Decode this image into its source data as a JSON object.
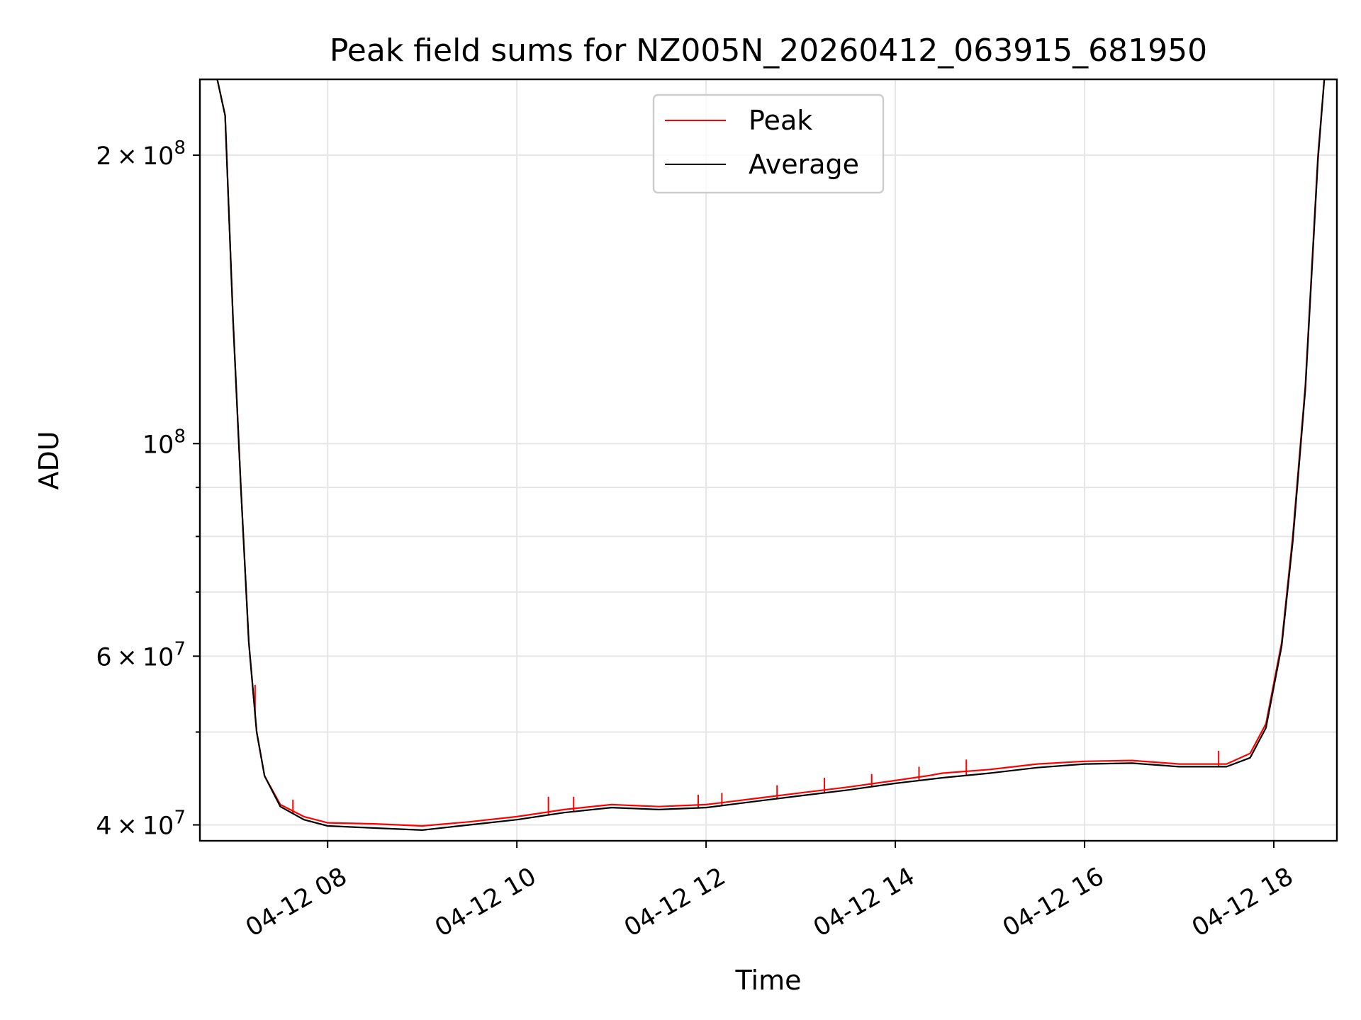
{
  "chart_data": {
    "type": "line",
    "title": "Peak field sums for NZ005N_20260412_063915_681950",
    "xlabel": "Time",
    "ylabel": "ADU",
    "y_scale": "log",
    "grid": true,
    "legend_position": "upper center",
    "xlim": [
      "2026-04-12 06:39",
      "2026-04-12 18:40"
    ],
    "ylim": [
      38500000,
      240000000
    ],
    "x_ticks": [
      {
        "time": "2026-04-12 08:00",
        "label": "04-12 08"
      },
      {
        "time": "2026-04-12 10:00",
        "label": "04-12 10"
      },
      {
        "time": "2026-04-12 12:00",
        "label": "04-12 12"
      },
      {
        "time": "2026-04-12 14:00",
        "label": "04-12 14"
      },
      {
        "time": "2026-04-12 16:00",
        "label": "04-12 16"
      },
      {
        "time": "2026-04-12 18:00",
        "label": "04-12 18"
      }
    ],
    "y_ticks_major": [
      {
        "value": 40000000,
        "mantissa": "4",
        "exponent": "7"
      },
      {
        "value": 60000000,
        "mantissa": "6",
        "exponent": "7"
      },
      {
        "value": 100000000,
        "mantissa": "",
        "exponent": "8"
      },
      {
        "value": 200000000,
        "mantissa": "2",
        "exponent": "8"
      }
    ],
    "y_ticks_minor": [
      50000000,
      70000000,
      80000000,
      90000000
    ],
    "series": [
      {
        "name": "Peak",
        "color": "#ff0000",
        "points": [
          [
            "2026-04-12 06:39",
            240000000
          ],
          [
            "2026-04-12 06:50",
            240000000
          ],
          [
            "2026-04-12 06:55",
            220000000
          ],
          [
            "2026-04-12 07:00",
            135000000
          ],
          [
            "2026-04-12 07:05",
            90000000
          ],
          [
            "2026-04-12 07:10",
            62000000
          ],
          [
            "2026-04-12 07:15",
            50000000
          ],
          [
            "2026-04-12 07:20",
            45000000
          ],
          [
            "2026-04-12 07:30",
            42000000
          ],
          [
            "2026-04-12 07:45",
            40800000
          ],
          [
            "2026-04-12 08:00",
            40200000
          ],
          [
            "2026-04-12 08:30",
            40100000
          ],
          [
            "2026-04-12 09:00",
            39900000
          ],
          [
            "2026-04-12 09:30",
            40300000
          ],
          [
            "2026-04-12 10:00",
            40800000
          ],
          [
            "2026-04-12 10:30",
            41500000
          ],
          [
            "2026-04-12 11:00",
            42000000
          ],
          [
            "2026-04-12 11:30",
            41800000
          ],
          [
            "2026-04-12 12:00",
            42000000
          ],
          [
            "2026-04-12 12:30",
            42600000
          ],
          [
            "2026-04-12 13:00",
            43200000
          ],
          [
            "2026-04-12 13:30",
            43800000
          ],
          [
            "2026-04-12 14:00",
            44500000
          ],
          [
            "2026-04-12 14:20",
            45000000
          ],
          [
            "2026-04-12 14:30",
            45300000
          ],
          [
            "2026-04-12 15:00",
            45700000
          ],
          [
            "2026-04-12 15:30",
            46300000
          ],
          [
            "2026-04-12 16:00",
            46600000
          ],
          [
            "2026-04-12 16:30",
            46700000
          ],
          [
            "2026-04-12 17:00",
            46300000
          ],
          [
            "2026-04-12 17:30",
            46300000
          ],
          [
            "2026-04-12 17:45",
            47500000
          ],
          [
            "2026-04-12 17:55",
            51000000
          ],
          [
            "2026-04-12 18:05",
            62000000
          ],
          [
            "2026-04-12 18:12",
            80000000
          ],
          [
            "2026-04-12 18:20",
            115000000
          ],
          [
            "2026-04-12 18:28",
            200000000
          ],
          [
            "2026-04-12 18:32",
            240000000
          ],
          [
            "2026-04-12 18:40",
            240000000
          ]
        ]
      },
      {
        "name": "Average",
        "color": "#000000",
        "points": [
          [
            "2026-04-12 06:39",
            240000000
          ],
          [
            "2026-04-12 06:50",
            240000000
          ],
          [
            "2026-04-12 06:55",
            220000000
          ],
          [
            "2026-04-12 07:00",
            135000000
          ],
          [
            "2026-04-12 07:05",
            90000000
          ],
          [
            "2026-04-12 07:10",
            62000000
          ],
          [
            "2026-04-12 07:15",
            50000000
          ],
          [
            "2026-04-12 07:20",
            45000000
          ],
          [
            "2026-04-12 07:30",
            41800000
          ],
          [
            "2026-04-12 07:45",
            40500000
          ],
          [
            "2026-04-12 08:00",
            39900000
          ],
          [
            "2026-04-12 08:30",
            39700000
          ],
          [
            "2026-04-12 09:00",
            39500000
          ],
          [
            "2026-04-12 09:30",
            40000000
          ],
          [
            "2026-04-12 10:00",
            40500000
          ],
          [
            "2026-04-12 10:30",
            41200000
          ],
          [
            "2026-04-12 11:00",
            41700000
          ],
          [
            "2026-04-12 11:30",
            41500000
          ],
          [
            "2026-04-12 12:00",
            41700000
          ],
          [
            "2026-04-12 12:30",
            42300000
          ],
          [
            "2026-04-12 13:00",
            42900000
          ],
          [
            "2026-04-12 13:30",
            43500000
          ],
          [
            "2026-04-12 14:00",
            44200000
          ],
          [
            "2026-04-12 14:20",
            44600000
          ],
          [
            "2026-04-12 14:30",
            44800000
          ],
          [
            "2026-04-12 15:00",
            45300000
          ],
          [
            "2026-04-12 15:30",
            45900000
          ],
          [
            "2026-04-12 16:00",
            46300000
          ],
          [
            "2026-04-12 16:30",
            46400000
          ],
          [
            "2026-04-12 17:00",
            46000000
          ],
          [
            "2026-04-12 17:30",
            46000000
          ],
          [
            "2026-04-12 17:45",
            47000000
          ],
          [
            "2026-04-12 17:55",
            50500000
          ],
          [
            "2026-04-12 18:05",
            61500000
          ],
          [
            "2026-04-12 18:12",
            79000000
          ],
          [
            "2026-04-12 18:20",
            114000000
          ],
          [
            "2026-04-12 18:28",
            198000000
          ],
          [
            "2026-04-12 18:32",
            240000000
          ],
          [
            "2026-04-12 18:40",
            240000000
          ]
        ]
      }
    ],
    "spikes": [
      {
        "time": "2026-04-12 07:14",
        "value": 56000000,
        "series": "Peak"
      },
      {
        "time": "2026-04-12 07:38",
        "value": 42500000,
        "series": "Peak"
      },
      {
        "time": "2026-04-12 10:20",
        "value": 42800000,
        "series": "Peak"
      },
      {
        "time": "2026-04-12 10:36",
        "value": 42800000,
        "series": "Peak"
      },
      {
        "time": "2026-04-12 11:55",
        "value": 43000000,
        "series": "Peak"
      },
      {
        "time": "2026-04-12 12:10",
        "value": 43200000,
        "series": "Peak"
      },
      {
        "time": "2026-04-12 12:45",
        "value": 44000000,
        "series": "Peak"
      },
      {
        "time": "2026-04-12 13:15",
        "value": 44800000,
        "series": "Peak"
      },
      {
        "time": "2026-04-12 13:45",
        "value": 45200000,
        "series": "Peak"
      },
      {
        "time": "2026-04-12 14:15",
        "value": 46000000,
        "series": "Peak"
      },
      {
        "time": "2026-04-12 14:45",
        "value": 46800000,
        "series": "Peak"
      },
      {
        "time": "2026-04-12 17:25",
        "value": 47800000,
        "series": "Peak"
      }
    ]
  }
}
